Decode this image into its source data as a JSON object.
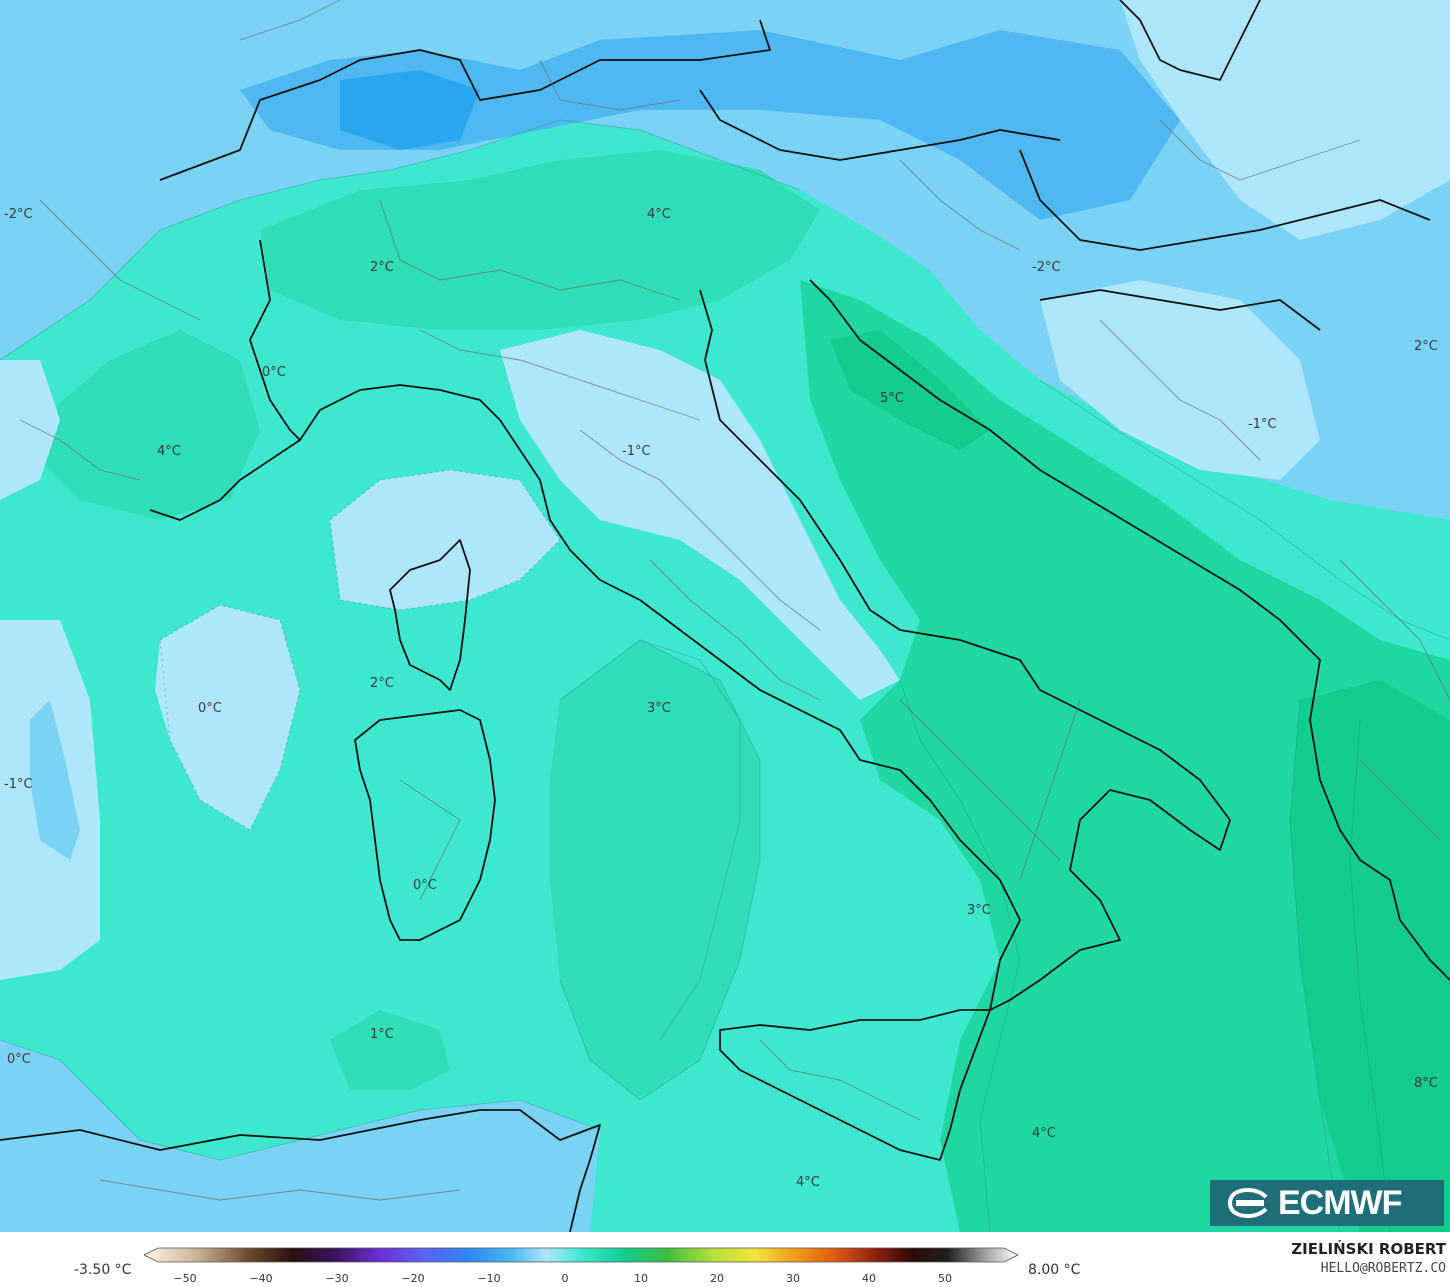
{
  "map": {
    "colors": {
      "sea_base": "#3ee8cf",
      "cold_blue": "#7ad2f5",
      "colder_blue": "#4fb8f0",
      "coldest_blue": "#2aa6ee",
      "pale_blue": "#aee6fb",
      "warm_green": "#1fd7a0",
      "warmer_green": "#12cc8e"
    },
    "labels": [
      {
        "text": "-2°C"
      },
      {
        "text": "2°C"
      },
      {
        "text": "4°C"
      },
      {
        "text": "0°C"
      },
      {
        "text": "-2°C"
      },
      {
        "text": "5°C"
      },
      {
        "text": "2°C"
      },
      {
        "text": "-1°C"
      },
      {
        "text": "-1°C"
      },
      {
        "text": "4°C"
      },
      {
        "text": "0°C"
      },
      {
        "text": "2°C"
      },
      {
        "text": "3°C"
      },
      {
        "text": "-1°C"
      },
      {
        "text": "0°C"
      },
      {
        "text": "3°C"
      },
      {
        "text": "1°C"
      },
      {
        "text": "0°C"
      },
      {
        "text": "4°C"
      },
      {
        "text": "8°C"
      },
      {
        "text": "4°C"
      }
    ]
  },
  "legend": {
    "min_label": "-3.50 °C",
    "max_label": "8.00 °C",
    "ticks": [
      "−50",
      "−40",
      "−30",
      "−20",
      "−10",
      "0",
      "10",
      "20",
      "30",
      "40",
      "50"
    ]
  },
  "branding": {
    "logo_text": "ECMWF",
    "author": "ZIELIŃSKI ROBERT",
    "email": "HELLO@ROBERTZ.CO"
  }
}
